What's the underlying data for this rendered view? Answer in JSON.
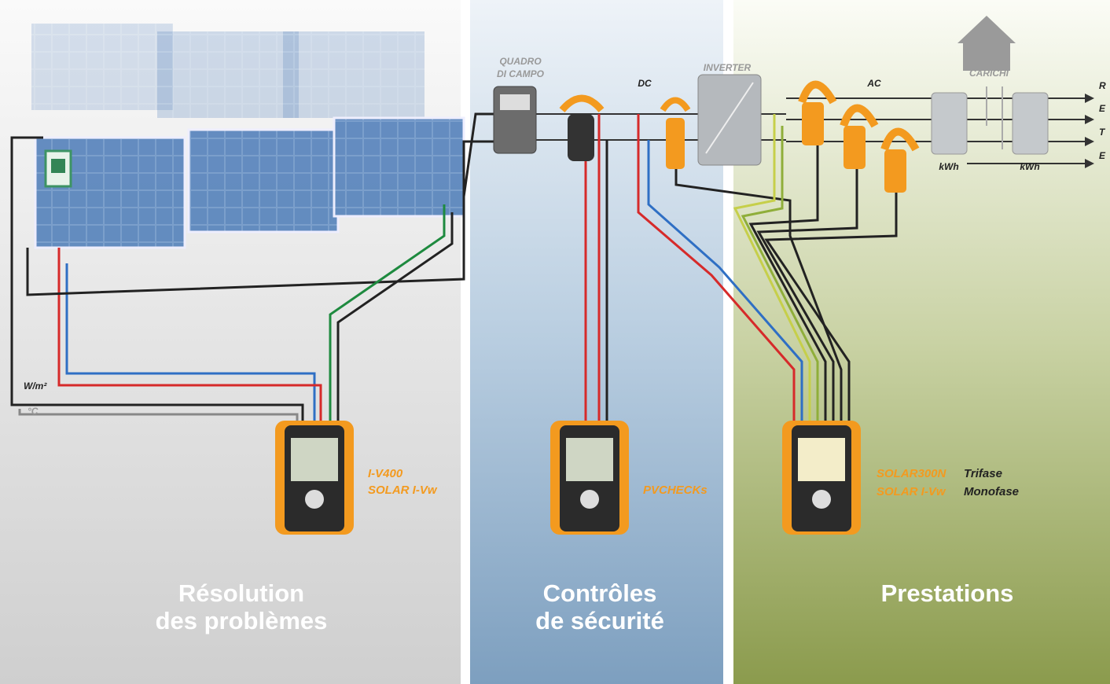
{
  "diagram": {
    "field_box": {
      "label": [
        "QUADRO",
        "DI CAMPO"
      ]
    },
    "dc_label": "DC",
    "inverter_label": "INVERTER",
    "ac_label": "AC",
    "loads_label": "CARICHI",
    "grid_lines": [
      "R",
      "E",
      "T",
      "E"
    ],
    "meters": [
      "kWh",
      "kWh"
    ],
    "sensor_labels": [
      "W/m²",
      "°C"
    ]
  },
  "instruments": [
    {
      "names": [
        "I-V400",
        "SOLAR I-Vw"
      ]
    },
    {
      "names": [
        "PVCHECKs"
      ]
    },
    {
      "names": [
        "SOLAR300N",
        "SOLAR I-Vw"
      ],
      "notes": [
        "Trifase",
        "Monofase"
      ]
    }
  ],
  "sections": [
    {
      "title": [
        "Résolution",
        "des problèmes"
      ]
    },
    {
      "title": [
        "Contrôles",
        "de sécurité"
      ]
    },
    {
      "title": [
        "Prestations"
      ]
    }
  ]
}
